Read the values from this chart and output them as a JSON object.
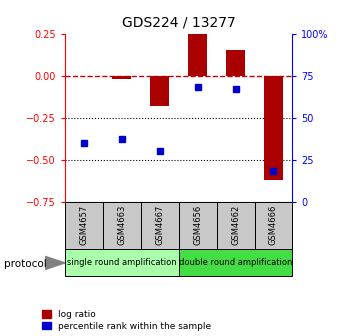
{
  "title": "GDS224 / 13277",
  "samples": [
    "GSM4657",
    "GSM4663",
    "GSM4667",
    "GSM4656",
    "GSM4662",
    "GSM4666"
  ],
  "log_ratio": [
    0.0,
    -0.02,
    -0.18,
    0.25,
    0.15,
    -0.62
  ],
  "percentile_rank": [
    35,
    37,
    30,
    68,
    67,
    18
  ],
  "protocol_groups": [
    {
      "label": "single round amplification",
      "start": 0,
      "end": 3,
      "color": "#aaffaa"
    },
    {
      "label": "double round amplification",
      "start": 3,
      "end": 6,
      "color": "#44dd44"
    }
  ],
  "ylim_left": [
    -0.75,
    0.25
  ],
  "ylim_right": [
    0,
    100
  ],
  "left_yticks": [
    -0.75,
    -0.5,
    -0.25,
    0,
    0.25
  ],
  "right_yticks": [
    0,
    25,
    50,
    75,
    100
  ],
  "bar_color": "#aa0000",
  "dot_color": "#0000cc",
  "dashed_line_color": "#cc0000",
  "gray_color": "#c8c8c8",
  "protocol_label": "protocol",
  "legend_items": [
    {
      "label": "log ratio",
      "color": "#aa0000"
    },
    {
      "label": "percentile rank within the sample",
      "color": "#0000cc"
    }
  ]
}
